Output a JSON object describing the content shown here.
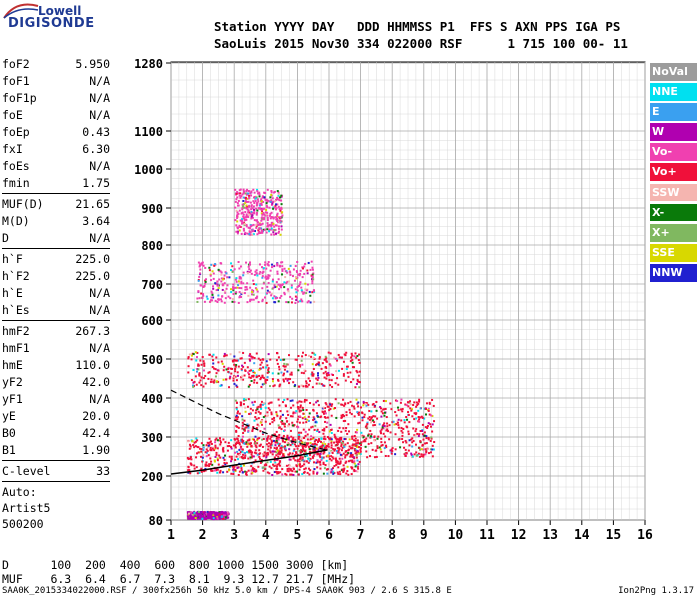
{
  "logo": {
    "line1": "Lowell",
    "line2": "DIGISONDE"
  },
  "header": {
    "line1": "Station YYYY DAY   DDD HHMMSS P1  FFS S AXN PPS IGA PS",
    "line2": "SaoLuis 2015 Nov30 334 022000 RSF      1 715 100 00- 11"
  },
  "side_params": [
    {
      "label": "foF2",
      "value": "5.950"
    },
    {
      "label": "foF1",
      "value": "N/A"
    },
    {
      "label": "foF1p",
      "value": "N/A"
    },
    {
      "label": "foE",
      "value": "N/A"
    },
    {
      "label": "foEp",
      "value": "0.43"
    },
    {
      "label": "fxI",
      "value": "6.30"
    },
    {
      "label": "foEs",
      "value": "N/A"
    },
    {
      "label": "fmin",
      "value": "1.75"
    }
  ],
  "side_params2": [
    {
      "label": "MUF(D)",
      "value": "21.65"
    },
    {
      "label": "M(D)",
      "value": "3.64"
    },
    {
      "label": "D",
      "value": "N/A"
    }
  ],
  "side_params3": [
    {
      "label": "h`F",
      "value": "225.0"
    },
    {
      "label": "h`F2",
      "value": "225.0"
    },
    {
      "label": "h`E",
      "value": "N/A"
    },
    {
      "label": "h`Es",
      "value": "N/A"
    }
  ],
  "side_params4": [
    {
      "label": "hmF2",
      "value": "267.3"
    },
    {
      "label": "hmF1",
      "value": "N/A"
    },
    {
      "label": "hmE",
      "value": "110.0"
    },
    {
      "label": "yF2",
      "value": "42.0"
    },
    {
      "label": "yF1",
      "value": "N/A"
    },
    {
      "label": "yE",
      "value": "20.0"
    },
    {
      "label": "B0",
      "value": "42.4"
    },
    {
      "label": "B1",
      "value": "1.90"
    }
  ],
  "side_params5": [
    {
      "label": "C-level",
      "value": "33"
    }
  ],
  "side_auto": [
    "Auto:",
    "Artist5",
    "500200"
  ],
  "legend": [
    {
      "label": "NoVal",
      "color": "#9c9c9c"
    },
    {
      "label": "NNE",
      "color": "#00e0f0"
    },
    {
      "label": "E",
      "color": "#3aa0f0"
    },
    {
      "label": "W",
      "color": "#b000b0"
    },
    {
      "label": "Vo-",
      "color": "#f040b0"
    },
    {
      "label": "Vo+",
      "color": "#f0103a"
    },
    {
      "label": "SSW",
      "color": "#f5b5b0"
    },
    {
      "label": "X-",
      "color": "#0a7a0a"
    },
    {
      "label": "X+",
      "color": "#80b860"
    },
    {
      "label": "SSE",
      "color": "#d8d800"
    },
    {
      "label": "NNW",
      "color": "#2020d0"
    }
  ],
  "chart_data": {
    "type": "scatter",
    "title": "",
    "xlabel": "",
    "ylabel": "",
    "xlim": [
      1,
      16
    ],
    "ylim": [
      80,
      1280
    ],
    "x_ticks": [
      "1",
      "2",
      "3",
      "4",
      "5",
      "6",
      "7",
      "8",
      "9",
      "10",
      "11",
      "12",
      "13",
      "14",
      "15",
      "16"
    ],
    "y_ticks": [
      "80",
      "200",
      "300",
      "400",
      "500",
      "600",
      "700",
      "800",
      "900",
      "1000",
      "1100",
      "1280"
    ],
    "y_tick_values": [
      80,
      200,
      300,
      400,
      500,
      600,
      700,
      800,
      900,
      1000,
      1100,
      1280
    ],
    "y_scale": "non-linear (virtual height)",
    "grid": true,
    "echo_regions": [
      {
        "f": [
          1.5,
          2.8
        ],
        "h": [
          85,
          105
        ],
        "color": "#b000b0"
      },
      {
        "f": [
          1.5,
          7.0
        ],
        "h": [
          205,
          300
        ],
        "color": "#f0103a"
      },
      {
        "f": [
          3.0,
          9.3
        ],
        "h": [
          250,
          400
        ],
        "color": "#f0103a"
      },
      {
        "f": [
          1.5,
          7.0
        ],
        "h": [
          430,
          520
        ],
        "color": "#f0103a"
      },
      {
        "f": [
          1.8,
          5.5
        ],
        "h": [
          650,
          760
        ],
        "color": "#f040b0"
      },
      {
        "f": [
          3.0,
          4.5
        ],
        "h": [
          830,
          950
        ],
        "color": "#f040b0"
      }
    ],
    "trace_curve": [
      [
        1.0,
        205
      ],
      [
        2.0,
        215
      ],
      [
        3.0,
        228
      ],
      [
        4.0,
        240
      ],
      [
        5.0,
        252
      ],
      [
        5.95,
        267
      ]
    ]
  },
  "footer": {
    "line1": "D      100  200  400  600  800 1000 1500 3000 [km]",
    "line2": "MUF    6.3  6.4  6.7  7.3  8.1  9.3 12.7 21.7 [MHz]",
    "bottom": "SAA0K_2015334022000.RSF / 300fx256h 50 kHz 5.0 km / DPS-4 SAA0K 903 / 2.6 S 315.8 E",
    "version": "Ion2Png 1.3.17"
  }
}
